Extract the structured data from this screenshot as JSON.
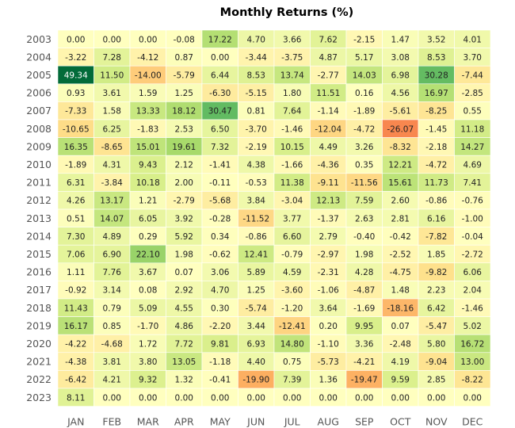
{
  "chart_data": {
    "type": "heatmap",
    "title": "Monthly Returns (%)",
    "xlabel": "",
    "ylabel": "",
    "columns": [
      "JAN",
      "FEB",
      "MAR",
      "APR",
      "MAY",
      "JUN",
      "JUL",
      "AUG",
      "SEP",
      "OCT",
      "NOV",
      "DEC"
    ],
    "rows": [
      "2003",
      "2004",
      "2005",
      "2006",
      "2007",
      "2008",
      "2009",
      "2010",
      "2011",
      "2012",
      "2013",
      "2014",
      "2015",
      "2016",
      "2017",
      "2018",
      "2019",
      "2020",
      "2021",
      "2022",
      "2023"
    ],
    "values": [
      [
        "0.00",
        "0.00",
        "0.00",
        "-0.08",
        "17.22",
        "4.70",
        "3.66",
        "7.62",
        "-2.15",
        "1.47",
        "3.52",
        "4.01"
      ],
      [
        "-3.22",
        "7.28",
        "-4.12",
        "0.87",
        "0.00",
        "-3.44",
        "-3.75",
        "4.87",
        "5.17",
        "3.08",
        "8.53",
        "3.70"
      ],
      [
        "49.34",
        "11.50",
        "-14.00",
        "-5.79",
        "6.44",
        "8.53",
        "13.74",
        "-2.77",
        "14.03",
        "6.98",
        "30.28",
        "-7.44"
      ],
      [
        "0.93",
        "3.61",
        "1.59",
        "1.25",
        "-6.30",
        "-5.15",
        "1.80",
        "11.51",
        "0.16",
        "4.56",
        "16.97",
        "-2.85"
      ],
      [
        "-7.33",
        "1.58",
        "13.33",
        "18.12",
        "30.47",
        "0.81",
        "7.64",
        "-1.14",
        "-1.89",
        "-5.61",
        "-8.25",
        "0.55"
      ],
      [
        "-10.65",
        "6.25",
        "-1.83",
        "2.53",
        "6.50",
        "-3.70",
        "-1.46",
        "-12.04",
        "-4.72",
        "-26.07",
        "-1.45",
        "11.18"
      ],
      [
        "16.35",
        "-8.65",
        "15.01",
        "19.61",
        "7.32",
        "-2.19",
        "10.15",
        "4.49",
        "3.26",
        "-8.32",
        "-2.18",
        "14.27"
      ],
      [
        "-1.89",
        "4.31",
        "9.43",
        "2.12",
        "-1.41",
        "4.38",
        "-1.66",
        "-4.36",
        "0.35",
        "12.21",
        "-4.72",
        "4.69"
      ],
      [
        "6.31",
        "-3.84",
        "10.18",
        "2.00",
        "-0.11",
        "-0.53",
        "11.38",
        "-9.11",
        "-11.56",
        "15.61",
        "11.73",
        "7.41"
      ],
      [
        "4.26",
        "13.17",
        "1.21",
        "-2.79",
        "-5.68",
        "3.84",
        "-3.04",
        "12.13",
        "7.59",
        "2.60",
        "-0.86",
        "-0.76"
      ],
      [
        "0.51",
        "14.07",
        "6.05",
        "3.92",
        "-0.28",
        "-11.52",
        "3.77",
        "-1.37",
        "2.63",
        "2.81",
        "6.16",
        "-1.00"
      ],
      [
        "7.30",
        "4.89",
        "0.29",
        "5.92",
        "0.34",
        "-0.86",
        "6.60",
        "2.79",
        "-0.40",
        "-0.42",
        "-7.82",
        "-0.04"
      ],
      [
        "7.06",
        "6.90",
        "22.10",
        "1.98",
        "-0.62",
        "12.41",
        "-0.79",
        "-2.97",
        "1.98",
        "-2.52",
        "1.85",
        "-2.72"
      ],
      [
        "1.11",
        "7.76",
        "3.67",
        "0.07",
        "3.06",
        "5.89",
        "4.59",
        "-2.31",
        "4.28",
        "-4.75",
        "-9.82",
        "6.06"
      ],
      [
        "-0.92",
        "3.14",
        "0.08",
        "2.92",
        "4.70",
        "1.25",
        "-3.60",
        "-1.06",
        "-4.87",
        "1.48",
        "2.23",
        "2.04"
      ],
      [
        "11.43",
        "0.79",
        "5.09",
        "4.55",
        "0.30",
        "-5.74",
        "-1.20",
        "3.64",
        "-1.69",
        "-18.16",
        "6.42",
        "-1.46"
      ],
      [
        "16.17",
        "0.85",
        "-1.70",
        "4.86",
        "-2.20",
        "3.44",
        "-12.41",
        "0.20",
        "9.95",
        "0.07",
        "-5.47",
        "5.02"
      ],
      [
        "-4.22",
        "-4.68",
        "1.72",
        "7.72",
        "9.81",
        "6.93",
        "14.80",
        "-1.10",
        "3.36",
        "-2.48",
        "5.80",
        "16.72"
      ],
      [
        "-4.38",
        "3.81",
        "3.80",
        "13.05",
        "-1.18",
        "4.40",
        "0.75",
        "-5.73",
        "-4.21",
        "4.19",
        "-9.04",
        "13.00"
      ],
      [
        "-6.42",
        "4.21",
        "9.32",
        "1.32",
        "-0.41",
        "-19.90",
        "7.39",
        "1.36",
        "-19.47",
        "9.59",
        "2.85",
        "-8.22"
      ],
      [
        "8.11",
        "0.00",
        "0.00",
        "0.00",
        "0.00",
        "0.00",
        "0.00",
        "0.00",
        "0.00",
        "0.00",
        "0.00",
        "0.00"
      ]
    ],
    "colormap": "RdYlGn",
    "color_center": 0,
    "color_range": [
      -50,
      50
    ],
    "grid": false,
    "legend": "none"
  }
}
